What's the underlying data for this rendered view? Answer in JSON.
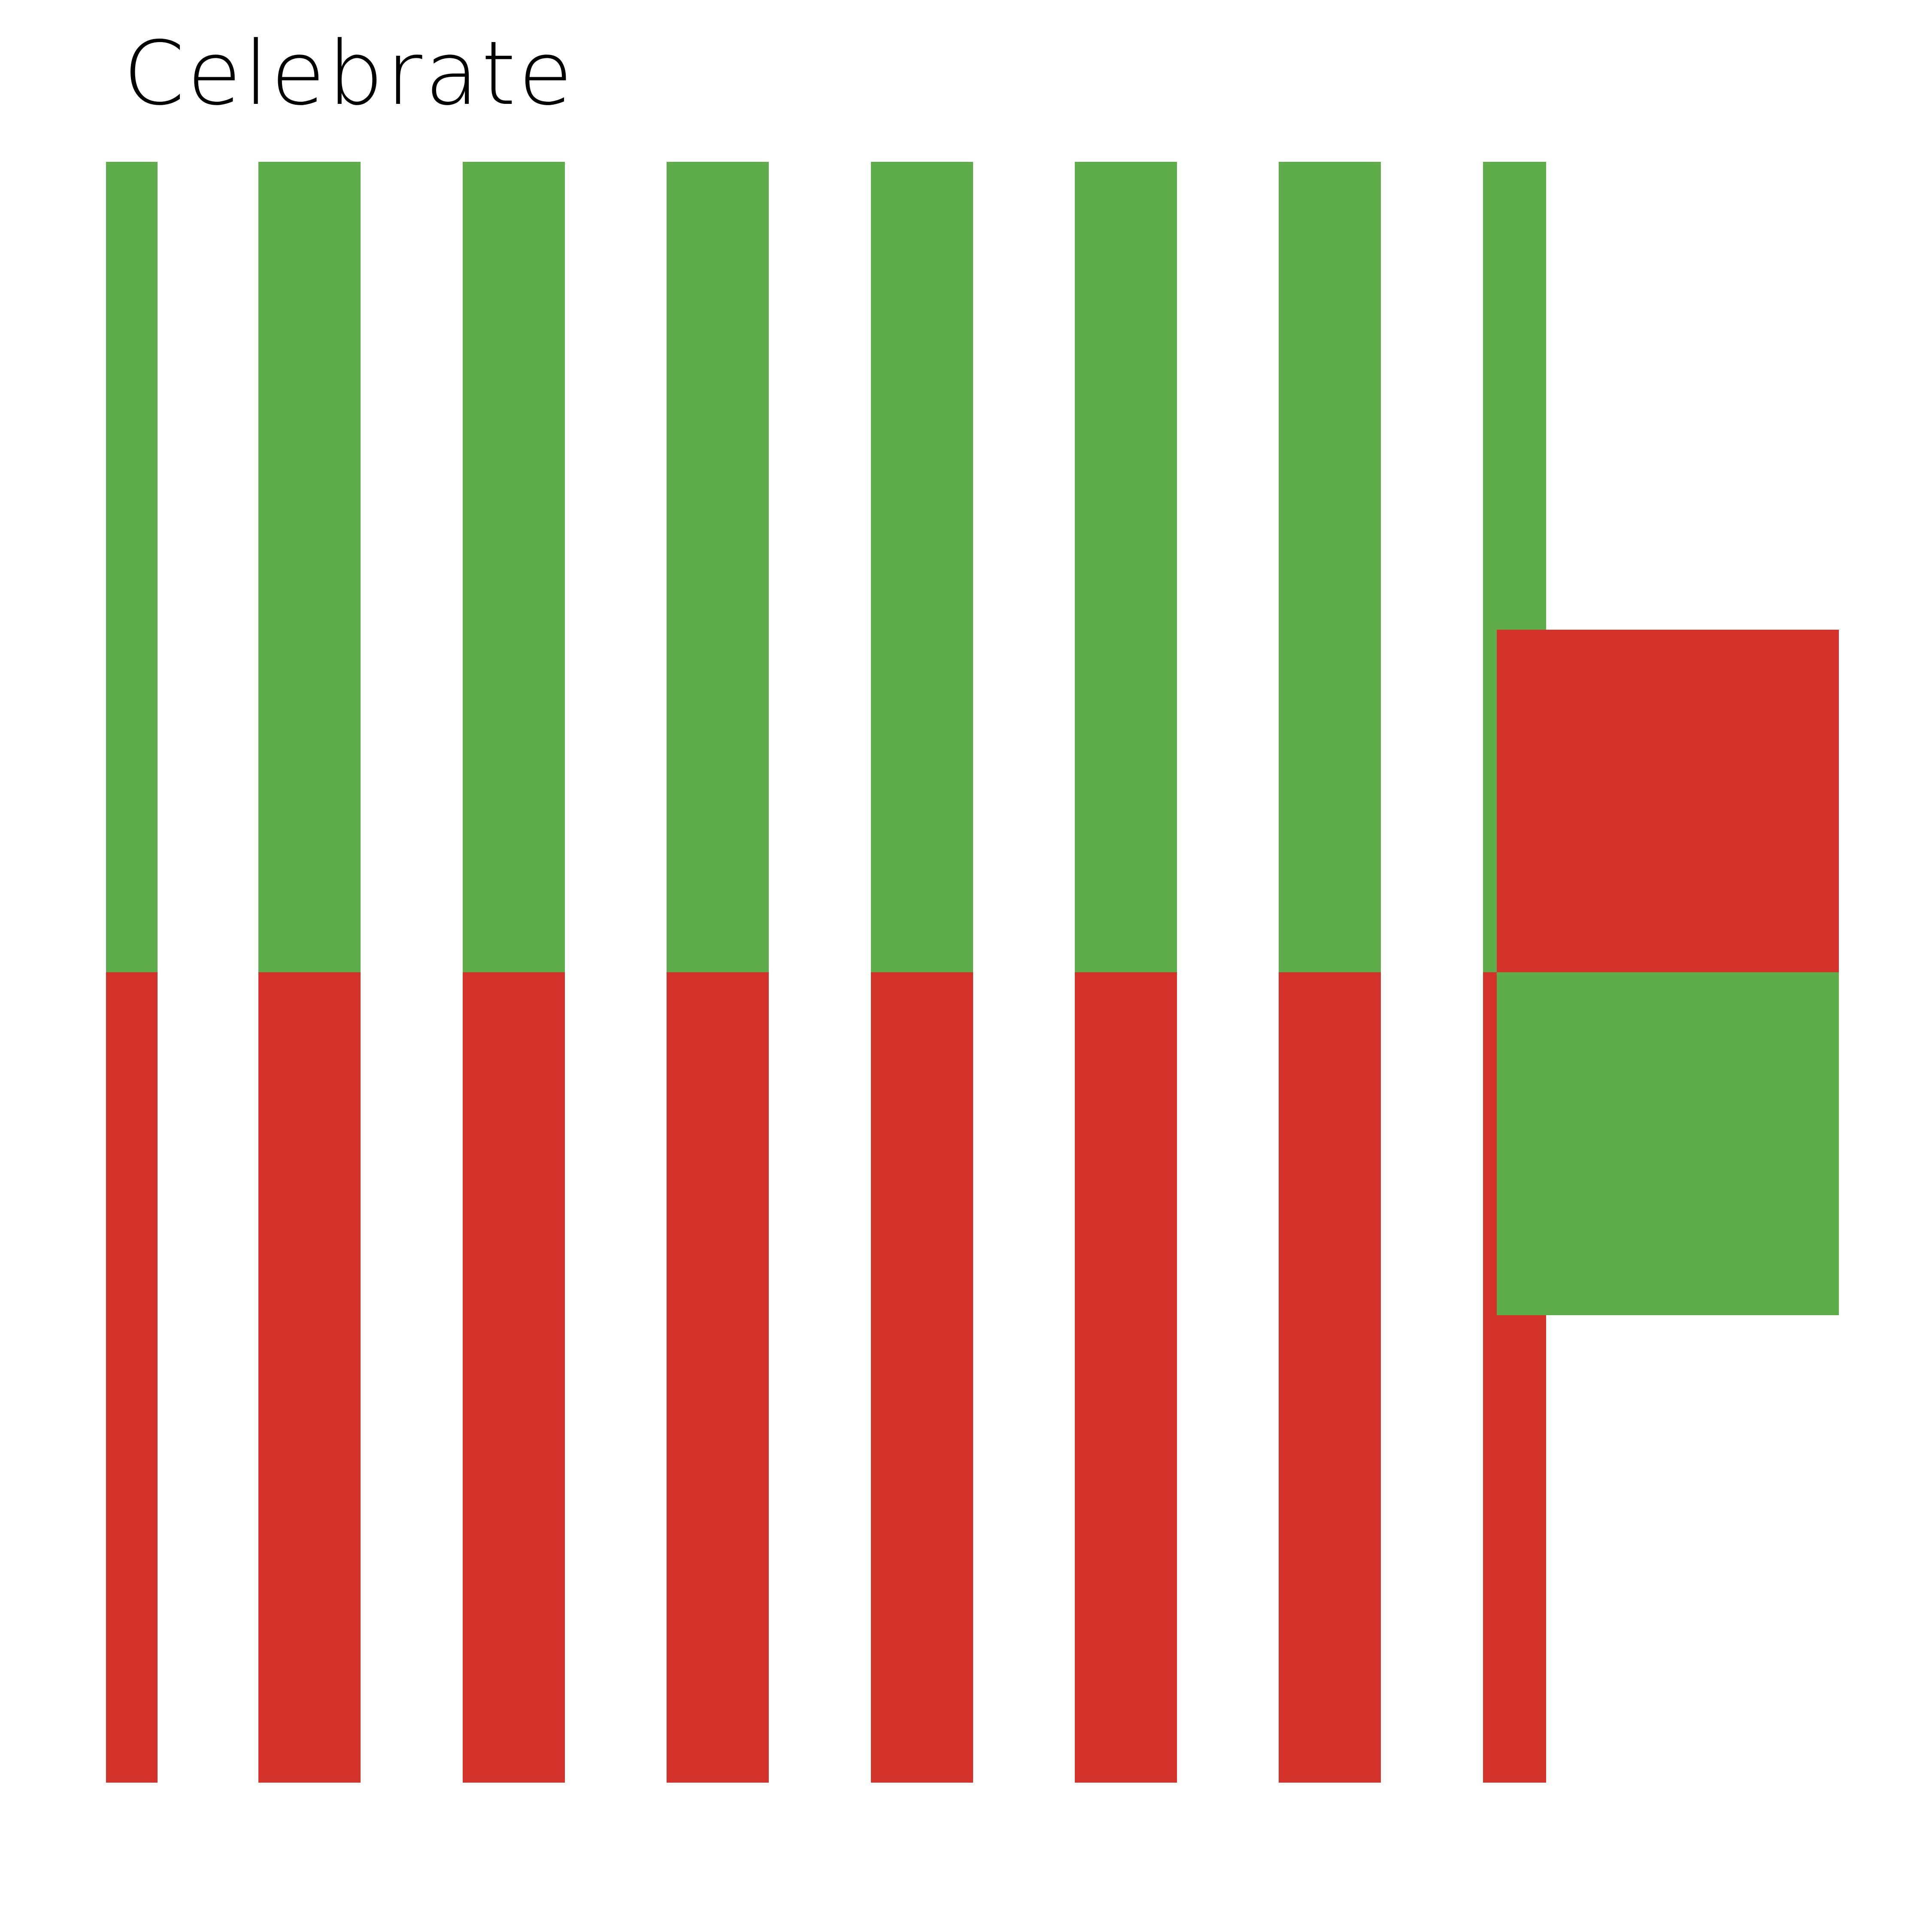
{
  "title": "Celebrate",
  "colors": {
    "background": "#ffffff",
    "green": "#5fad4a",
    "red": "#d4332b",
    "text": "#000000"
  },
  "stripes": [
    {
      "name": "stripe-1",
      "top_color": "green",
      "bottom_color": "red"
    },
    {
      "name": "stripe-2",
      "top_color": "green",
      "bottom_color": "red"
    },
    {
      "name": "stripe-3",
      "top_color": "green",
      "bottom_color": "red"
    },
    {
      "name": "stripe-4",
      "top_color": "green",
      "bottom_color": "red"
    },
    {
      "name": "stripe-5",
      "top_color": "green",
      "bottom_color": "red"
    },
    {
      "name": "stripe-6",
      "top_color": "green",
      "bottom_color": "red"
    },
    {
      "name": "stripe-7",
      "top_color": "green",
      "bottom_color": "red"
    },
    {
      "name": "stripe-8",
      "top_color": "green",
      "bottom_color": "red"
    }
  ],
  "flag": {
    "top_color": "red",
    "bottom_color": "green"
  }
}
